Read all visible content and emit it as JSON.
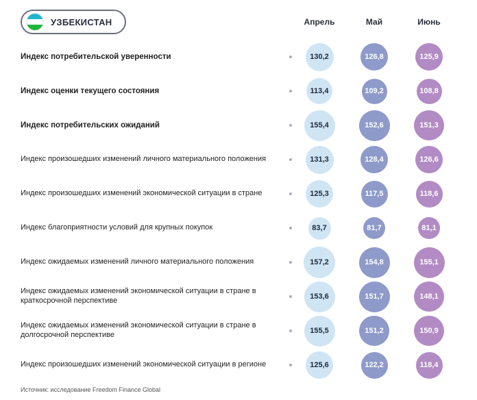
{
  "country_name": "УЗБЕКИСТАН",
  "months": [
    "Апрель",
    "Май",
    "Июнь"
  ],
  "month_colors": [
    "#cfe5f4",
    "#8e9ac9",
    "#b28bc4"
  ],
  "text_color_light": "#1a2a3b",
  "text_color_dark": "#ffffff",
  "bubble_min": 32,
  "bubble_max": 46,
  "value_min": 80,
  "value_max": 160,
  "rows": [
    {
      "label": "Индекс потребительской уверенности",
      "bold": true,
      "values": [
        130.2,
        126.8,
        125.9
      ]
    },
    {
      "label": "Индекс оценки текущего состояния",
      "bold": true,
      "values": [
        113.4,
        109.2,
        108.8
      ]
    },
    {
      "label": "Индекс потребительских ожиданий",
      "bold": true,
      "values": [
        155.4,
        152.6,
        151.3
      ]
    },
    {
      "label": "Индекс произошедших изменений личного материального положения",
      "bold": false,
      "values": [
        131.3,
        128.4,
        126.6
      ]
    },
    {
      "label": "Индекс произошедших изменений экономической ситуации в стране",
      "bold": false,
      "values": [
        125.3,
        117.5,
        118.6
      ]
    },
    {
      "label": "Индекс благоприятности условий для крупных покупок",
      "bold": false,
      "values": [
        83.7,
        81.7,
        81.1
      ]
    },
    {
      "label": "Индекс ожидаемых изменений личного материального положения",
      "bold": false,
      "values": [
        157.2,
        154.8,
        155.1
      ]
    },
    {
      "label": "Индекс ожидаемых изменений экономической ситуации в стране в краткосрочной перспективе",
      "bold": false,
      "values": [
        153.6,
        151.7,
        148.1
      ]
    },
    {
      "label": "Индекс ожидаемых изменений экономической ситуации в стране в долгосрочной перспективе",
      "bold": false,
      "values": [
        155.5,
        151.2,
        150.9
      ]
    },
    {
      "label": "Индекс произошедших изменений экономической ситуации в регионе",
      "bold": false,
      "values": [
        125.6,
        122.2,
        118.4
      ]
    }
  ],
  "source": "Источник: исследование Freedom Finance Global"
}
